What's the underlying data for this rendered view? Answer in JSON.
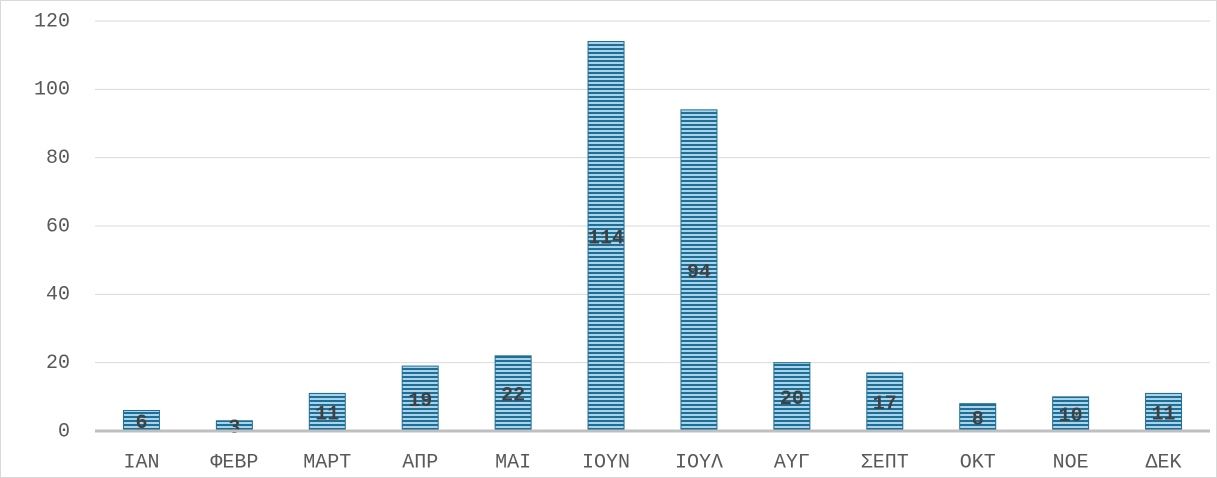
{
  "chart_data": {
    "type": "bar",
    "categories": [
      "ΙΑΝ",
      "ΦΕΒΡ",
      "ΜΑΡΤ",
      "ΑΠΡ",
      "ΜΑΙ",
      "ΙΟΥΝ",
      "ΙΟΥΛ",
      "ΑΥΓ",
      "ΣΕΠΤ",
      "ΟΚΤ",
      "ΝΟΕ",
      "ΔΕΚ"
    ],
    "values": [
      6,
      3,
      11,
      19,
      22,
      114,
      94,
      20,
      17,
      8,
      10,
      11
    ],
    "color": "#1f6e96",
    "ylim": [
      0,
      120
    ],
    "yticks": [
      0,
      20,
      40,
      60,
      80,
      100,
      120
    ],
    "grid": true
  }
}
